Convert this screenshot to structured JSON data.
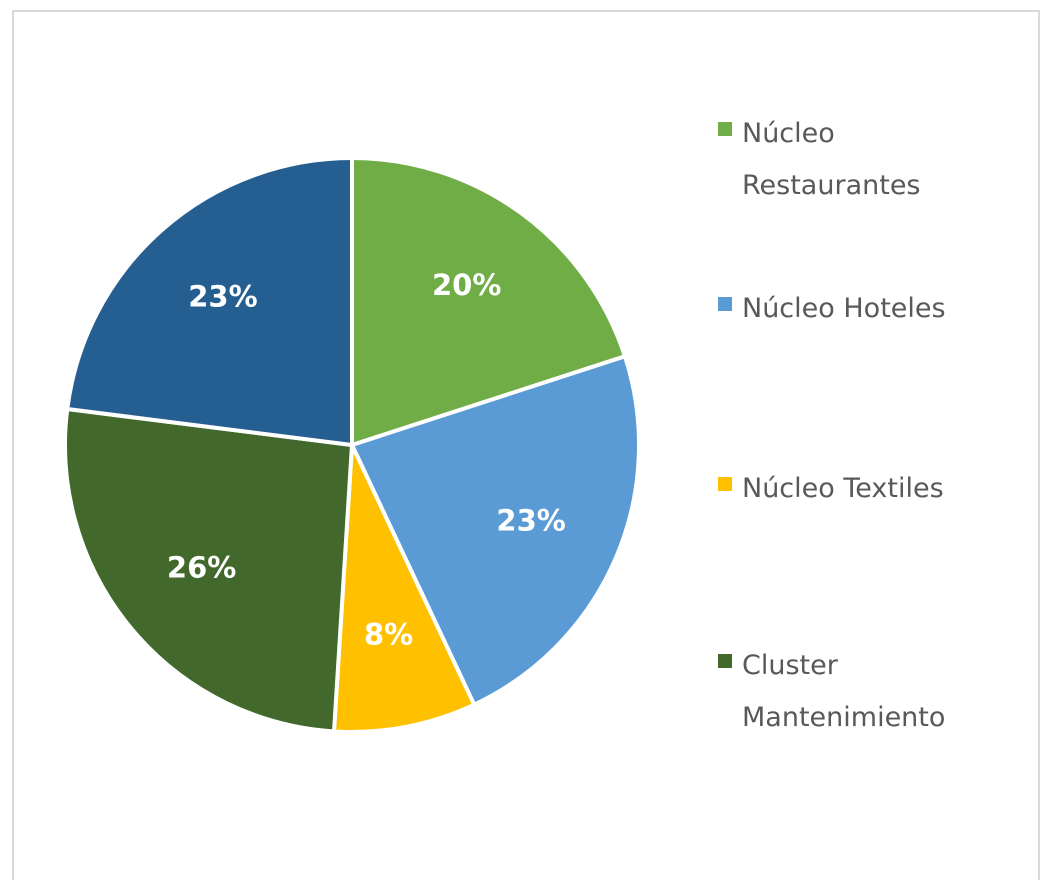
{
  "chart_data": {
    "type": "pie",
    "categories": [
      "Núcleo Restaurantes",
      "Núcleo Hoteles",
      "Núcleo Textiles",
      "Cluster Mantenimiento",
      null
    ],
    "values": [
      20,
      23,
      8,
      26,
      23
    ],
    "value_labels": [
      "20%",
      "23%",
      "8%",
      "26%",
      "23%"
    ],
    "colors": [
      "#70ad47",
      "#5b9bd5",
      "#ffc000",
      "#43682b",
      "#255e91"
    ],
    "legend": "right"
  }
}
